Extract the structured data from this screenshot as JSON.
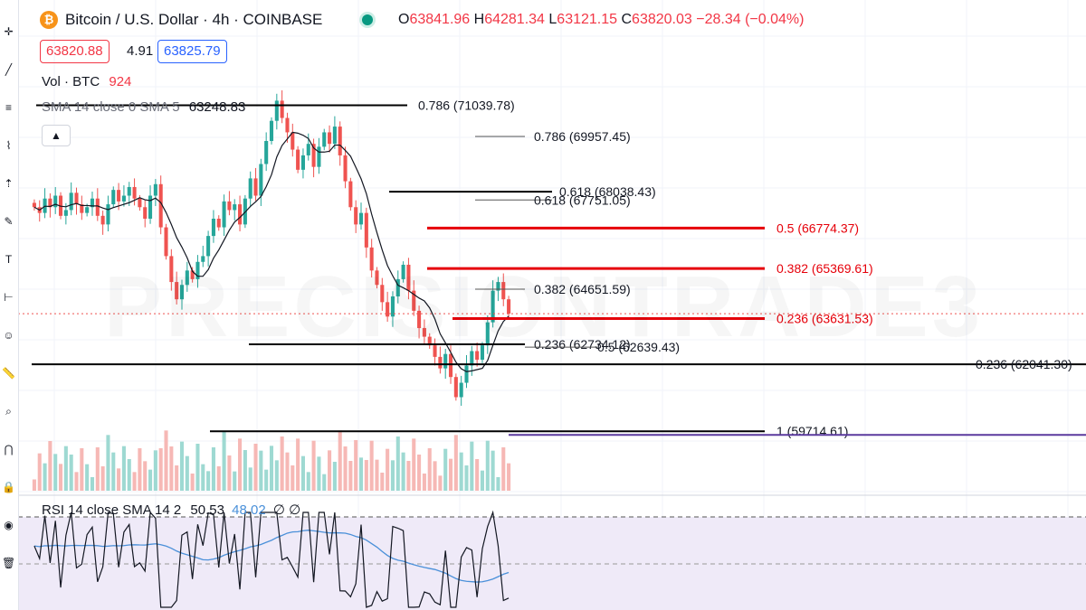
{
  "header": {
    "symbol_title": "Bitcoin / U.S. Dollar · 4h · COINBASE",
    "icon": "bitcoin-icon",
    "ohlc": {
      "o_label": "O",
      "o_value": "63841.96",
      "h_label": "H",
      "h_value": "64281.34",
      "l_label": "L",
      "l_value": "63121.15",
      "c_label": "C",
      "c_value": "63820.03",
      "change": "−28.34 (−0.04%)"
    },
    "bid": "63820.88",
    "spread": "4.91",
    "ask": "63825.79"
  },
  "indicators": {
    "volume": {
      "label": "Vol · BTC",
      "value": "924"
    },
    "sma": {
      "label": "SMA 14 close 0 SMA 5",
      "value": "63248.83"
    },
    "rsi": {
      "label": "RSI 14 close SMA 14 2",
      "value": "50.53",
      "sma_value": "48.02",
      "extra": "∅ ∅"
    }
  },
  "watermark": "PRECISIONTRADE3",
  "colors": {
    "up": "#26a69a",
    "down": "#ef5350",
    "fib_red": "#e6000a",
    "fib_black": "#000000",
    "fib_grey": "#555555",
    "purple": "#5b3a9e",
    "sma": "#131722",
    "rsi_line": "#131722",
    "rsi_sma": "#4a90d9",
    "rsi_band": "#efeaf8"
  },
  "toolbar_icons": [
    "crosshair-icon",
    "trend-line-icon",
    "fib-icon",
    "pattern-icon",
    "prediction-icon",
    "brush-icon",
    "text-icon",
    "measure-icon",
    "emoji-icon",
    "ruler-icon",
    "zoom-icon",
    "magnet-icon",
    "lock-icon",
    "eye-icon",
    "trash-icon"
  ],
  "chart_data": {
    "type": "candlestick",
    "symbol": "BTCUSD",
    "timeframe": "4h",
    "ylim": [
      59000,
      72500
    ],
    "price_series": [
      67500,
      67300,
      67800,
      67500,
      67900,
      67200,
      67400,
      68000,
      67600,
      67300,
      67500,
      67800,
      67200,
      66900,
      67600,
      68100,
      67700,
      67900,
      68200,
      67800,
      67500,
      67100,
      67900,
      68300,
      66800,
      65800,
      64900,
      64300,
      64800,
      65300,
      65000,
      65600,
      65800,
      66500,
      67100,
      66800,
      67700,
      67400,
      67600,
      66900,
      67800,
      68500,
      67900,
      69000,
      69800,
      70500,
      71200,
      70600,
      70100,
      69500,
      68800,
      69300,
      69700,
      68900,
      69600,
      70100,
      69700,
      70300,
      69300,
      68400,
      67500,
      66900,
      67300,
      66100,
      65300,
      64800,
      64200,
      63700,
      64400,
      65000,
      65500,
      64600,
      63900,
      63300,
      63000,
      62700,
      62300,
      61900,
      62400,
      61600,
      60900,
      61400,
      62000,
      62500,
      62200,
      62700,
      63500,
      64600,
      64900,
      64300,
      63800
    ],
    "fib_levels": [
      {
        "label": "0.786 (71039.78)",
        "price": 71039.78,
        "style": "black"
      },
      {
        "label": "0.786 (69957.45)",
        "price": 69957.45,
        "style": "grey"
      },
      {
        "label": "0.618 (68038.43)",
        "price": 68038.43,
        "style": "black"
      },
      {
        "label": "0.618 (67751.05)",
        "price": 67751.05,
        "style": "grey"
      },
      {
        "label": "0.5 (66774.37)",
        "price": 66774.37,
        "style": "red"
      },
      {
        "label": "0.382 (65369.61)",
        "price": 65369.61,
        "style": "red"
      },
      {
        "label": "0.382 (64651.59)",
        "price": 64651.59,
        "style": "grey"
      },
      {
        "label": "0.236 (63631.53)",
        "price": 63631.53,
        "style": "red"
      },
      {
        "label": "0.236 (62734.12)",
        "price": 62734.12,
        "style": "black"
      },
      {
        "label": "0.5 (62639.43)",
        "price": 62639.43,
        "style": "grey"
      },
      {
        "label": "0.236 (62041.30)",
        "price": 62041.3,
        "style": "black"
      },
      {
        "label": "1 (59714.61)",
        "price": 59714.61,
        "style": "black"
      }
    ]
  }
}
